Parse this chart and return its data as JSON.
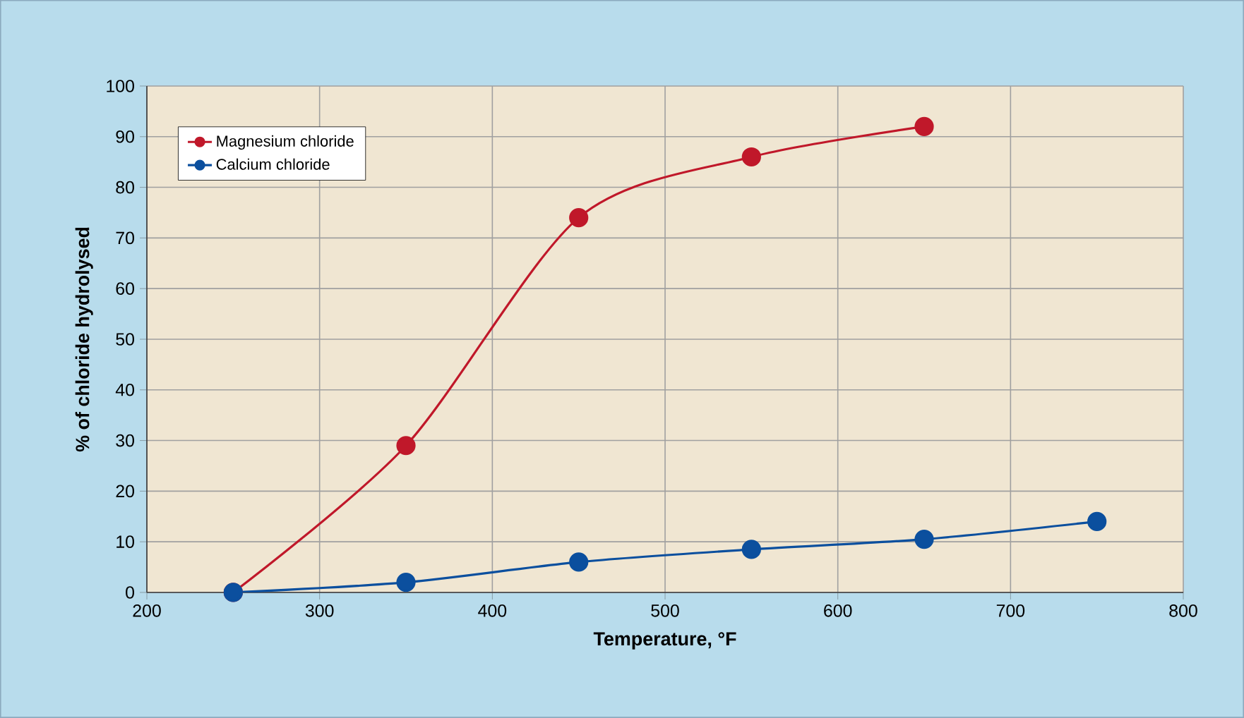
{
  "chart_data": {
    "type": "line",
    "xlabel": "Temperature, °F",
    "ylabel": "% of chloride hydrolysed",
    "x": [
      250,
      350,
      450,
      550,
      650,
      750
    ],
    "series": [
      {
        "name": "Magnesium chloride",
        "color": "#c0182a",
        "values": [
          0,
          29,
          74,
          86,
          92,
          null
        ]
      },
      {
        "name": "Calcium chloride",
        "color": "#0b4f9e",
        "values": [
          0,
          2,
          6,
          8.5,
          10.5,
          14
        ]
      }
    ],
    "xlim": [
      200,
      800
    ],
    "xticks": [
      200,
      300,
      400,
      500,
      600,
      700,
      800
    ],
    "ylim": [
      0,
      100
    ],
    "yticks": [
      0,
      10,
      20,
      30,
      40,
      50,
      60,
      70,
      80,
      90,
      100
    ],
    "grid": true,
    "legend": "top left",
    "marker": "circle",
    "line_style": "solid"
  }
}
